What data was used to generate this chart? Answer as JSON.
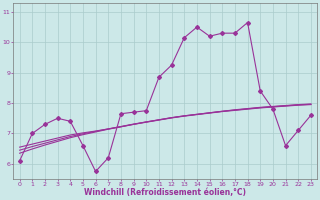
{
  "bg_color": "#cce8e8",
  "grid_color": "#aacccc",
  "line_color": "#993399",
  "x_values": [
    0,
    1,
    2,
    3,
    4,
    5,
    6,
    7,
    8,
    9,
    10,
    11,
    12,
    13,
    14,
    15,
    16,
    17,
    18,
    19,
    20,
    21,
    22,
    23
  ],
  "series1": [
    6.1,
    7.0,
    7.3,
    7.5,
    7.4,
    6.6,
    5.75,
    6.2,
    7.65,
    7.7,
    7.75,
    8.85,
    9.25,
    10.15,
    10.5,
    10.2,
    10.3,
    10.3,
    10.65,
    8.4,
    7.8,
    6.6,
    7.1,
    7.6
  ],
  "series2_slope": [
    6.55,
    6.65,
    6.75,
    6.85,
    6.95,
    7.02,
    7.08,
    7.15,
    7.22,
    7.3,
    7.38,
    7.45,
    7.52,
    7.58,
    7.63,
    7.68,
    7.73,
    7.78,
    7.82,
    7.86,
    7.89,
    7.92,
    7.95,
    7.97
  ],
  "series3_slope": [
    6.45,
    6.57,
    6.68,
    6.79,
    6.9,
    6.99,
    7.07,
    7.15,
    7.23,
    7.31,
    7.38,
    7.45,
    7.52,
    7.58,
    7.63,
    7.68,
    7.73,
    7.77,
    7.81,
    7.85,
    7.88,
    7.91,
    7.94,
    7.96
  ],
  "series4_slope": [
    6.35,
    6.49,
    6.62,
    6.74,
    6.86,
    6.96,
    7.05,
    7.14,
    7.22,
    7.3,
    7.37,
    7.44,
    7.51,
    7.57,
    7.62,
    7.67,
    7.72,
    7.76,
    7.8,
    7.84,
    7.87,
    7.9,
    7.93,
    7.95
  ],
  "ylim": [
    5.5,
    11.3
  ],
  "xlim": [
    -0.5,
    23.5
  ],
  "yticks": [
    6,
    7,
    8,
    9,
    10,
    11
  ],
  "xticks": [
    0,
    1,
    2,
    3,
    4,
    5,
    6,
    7,
    8,
    9,
    10,
    11,
    12,
    13,
    14,
    15,
    16,
    17,
    18,
    19,
    20,
    21,
    22,
    23
  ],
  "tick_fontsize": 4.5,
  "xlabel": "Windchill (Refroidissement éolien,°C)",
  "xlabel_fontsize": 5.5,
  "marker": "D",
  "marker_size": 2.0,
  "linewidth": 0.8
}
